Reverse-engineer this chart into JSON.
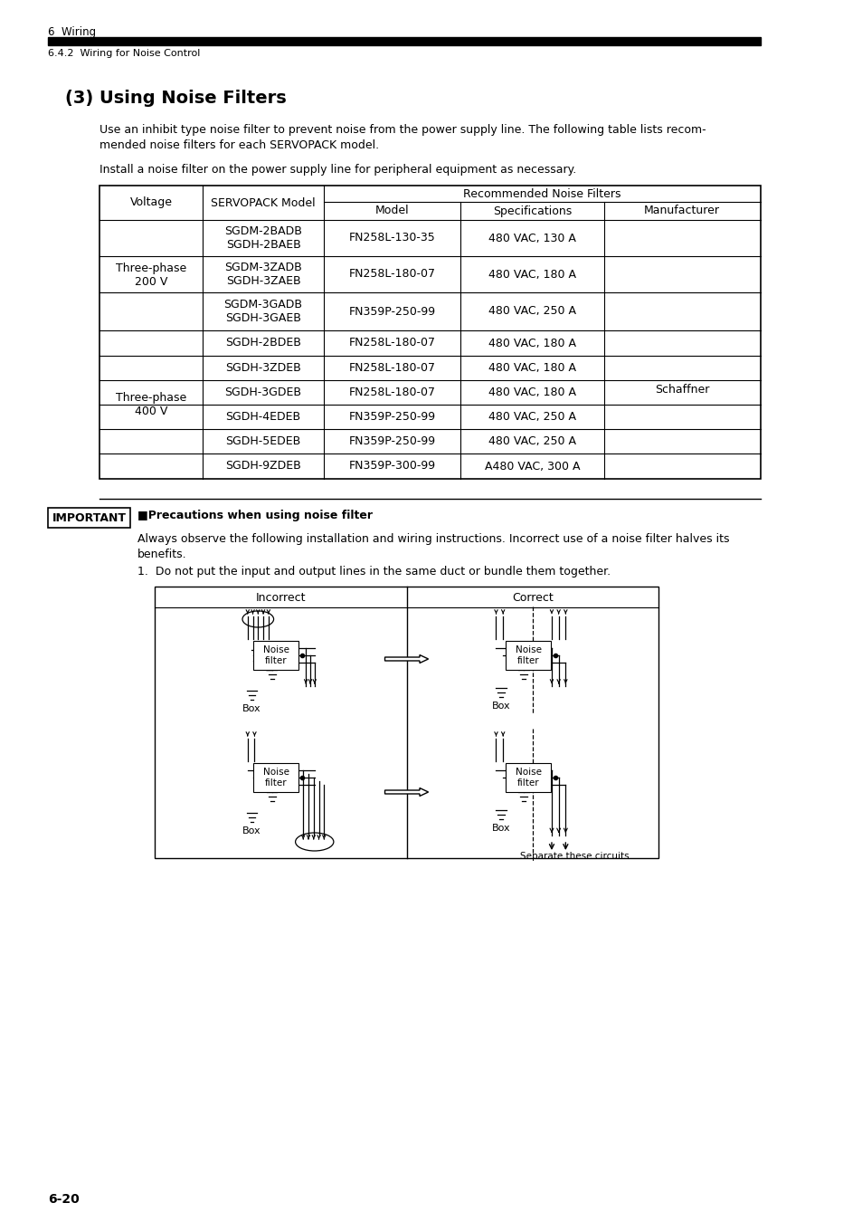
{
  "page_header_section": "6  Wiring",
  "page_header_subsection": "6.4.2  Wiring for Noise Control",
  "section_title": "(3) Using Noise Filters",
  "intro_text_line1": "Use an inhibit type noise filter to prevent noise from the power supply line. The following table lists recom-",
  "intro_text_line2": "mended noise filters for each SERVOPACK model.",
  "intro_text2": "Install a noise filter on the power supply line for peripheral equipment as necessary.",
  "important_label": "IMPORTANT",
  "precaution_title": "■Precautions when using noise filter",
  "precaution_text1": "Always observe the following installation and wiring instructions. Incorrect use of a noise filter halves its",
  "precaution_text2": "benefits.",
  "precaution_item": "1.  Do not put the input and output lines in the same duct or bundle them together.",
  "diagram_incorrect": "Incorrect",
  "diagram_correct": "Correct",
  "diagram_separate": "Separate these circuits",
  "page_number": "6-20",
  "bg_color": "#ffffff",
  "text_color": "#000000"
}
